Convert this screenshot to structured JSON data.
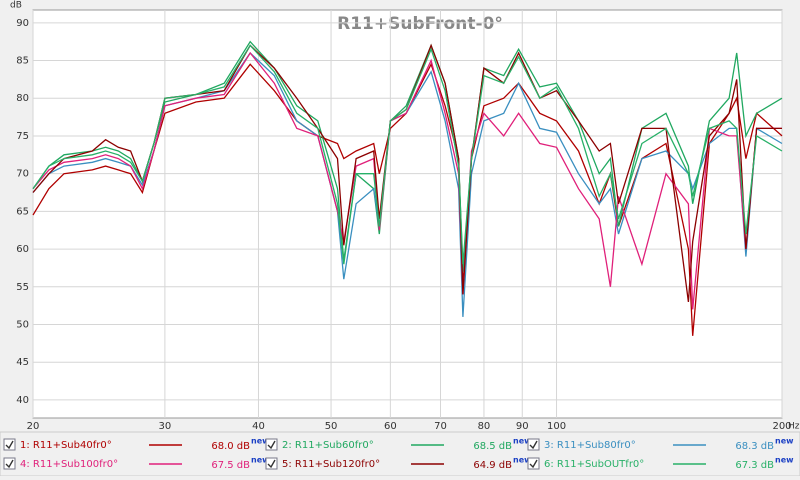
{
  "chart_data": {
    "type": "line",
    "title": "R11+SubFront-0°",
    "y_unit": "dB",
    "x_unit": "Hz",
    "log_x": true,
    "grid": true,
    "xlim": [
      20,
      200
    ],
    "ylim": [
      37.6,
      91.7
    ],
    "xticks": [
      20,
      30,
      40,
      50,
      60,
      70,
      80,
      90,
      100,
      200
    ],
    "yticks": [
      40,
      45,
      50,
      55,
      60,
      65,
      70,
      75,
      80,
      85,
      90
    ],
    "legend_badge": "new",
    "x": [
      20,
      21,
      22,
      24,
      25,
      26,
      27,
      28,
      29,
      30,
      33,
      36,
      39,
      42,
      45,
      48,
      51,
      52,
      54,
      57,
      58,
      60,
      63,
      68,
      71,
      74,
      75,
      77,
      80,
      85,
      89,
      95,
      100,
      107,
      114,
      118,
      121,
      130,
      140,
      150,
      152,
      160,
      170,
      174,
      179,
      185,
      200
    ],
    "series": [
      {
        "name": "1: R11+Sub40fr0°",
        "level": "68.0 dB",
        "color": "#b00000",
        "values": [
          64.5,
          68,
          70,
          70.5,
          71,
          70.5,
          70,
          67.5,
          73,
          78,
          79.5,
          80,
          84.5,
          81,
          77,
          75,
          74,
          72,
          73,
          74,
          70,
          76,
          78,
          84.5,
          79,
          72,
          55,
          72,
          79,
          80,
          82,
          78,
          77,
          73,
          66,
          70,
          63,
          72,
          74,
          60,
          48.5,
          74,
          78,
          80,
          72,
          78,
          75
        ]
      },
      {
        "name": "2: R11+Sub60fr0°",
        "level": "68.5 dB",
        "color": "#20a860",
        "values": [
          68,
          71,
          72.5,
          73,
          73.5,
          73,
          72,
          69,
          74,
          79.5,
          80.5,
          82,
          87.5,
          84,
          79,
          77,
          68,
          58.5,
          70,
          68,
          62,
          77,
          79,
          87,
          82,
          72,
          57,
          72,
          84,
          83,
          86.5,
          81.5,
          82,
          77,
          70,
          72,
          63,
          76,
          78,
          71,
          66,
          77,
          80,
          86,
          75,
          78,
          80
        ]
      },
      {
        "name": "3: R11+Sub80fr0°",
        "level": "68.3 dB",
        "color": "#3a8fc0",
        "values": [
          67.5,
          70,
          71,
          71.5,
          72,
          71.5,
          71,
          68.5,
          73,
          79,
          80,
          81,
          86,
          83,
          77,
          75,
          65,
          56,
          66,
          68,
          63,
          77,
          78,
          83.5,
          77,
          68,
          51,
          70,
          77,
          78,
          82,
          76,
          75.5,
          70,
          66,
          68,
          62,
          72,
          73,
          70,
          68,
          74,
          76,
          76,
          59,
          76,
          74
        ]
      },
      {
        "name": "4: R11+Sub100fr0°",
        "level": "67.5 dB",
        "color": "#e0207a",
        "values": [
          68,
          70.5,
          71.5,
          72,
          72.5,
          72,
          71,
          68,
          73,
          79,
          80,
          80.5,
          86,
          82,
          76,
          75,
          65,
          61,
          71,
          72,
          62.5,
          77,
          78,
          85,
          78,
          70,
          54,
          73,
          78,
          75,
          78,
          74,
          73.5,
          68,
          64,
          55,
          67,
          58,
          70,
          66,
          52,
          76,
          75,
          75,
          60,
          76,
          76
        ]
      },
      {
        "name": "5: R11+Sub120fr0°",
        "level": "64.9 dB",
        "color": "#8c0000",
        "values": [
          67.5,
          70,
          72,
          73,
          74.5,
          73.5,
          73,
          69,
          74,
          80,
          80.5,
          81,
          87,
          84,
          80,
          76,
          72,
          60.5,
          72,
          73,
          64,
          77,
          78.5,
          87,
          82,
          72,
          54,
          72,
          84,
          82,
          86,
          80,
          81,
          77,
          73,
          74,
          66,
          76,
          76,
          53,
          61,
          75,
          78,
          82.5,
          60,
          76,
          76
        ]
      },
      {
        "name": "6: R11+SubOUTfr0°",
        "level": "67.3 dB",
        "color": "#28b068",
        "values": [
          68,
          71,
          72,
          72.5,
          73,
          72.5,
          71.5,
          69,
          74,
          80,
          80.5,
          81.5,
          87,
          83.5,
          78,
          76,
          66,
          58,
          70,
          70,
          63,
          77,
          78.5,
          86.5,
          81,
          71,
          58,
          72,
          83,
          82,
          85.5,
          80,
          81.5,
          76,
          67,
          70,
          64,
          74,
          76,
          70,
          67,
          76,
          77,
          76,
          62,
          75,
          73
        ]
      }
    ]
  }
}
